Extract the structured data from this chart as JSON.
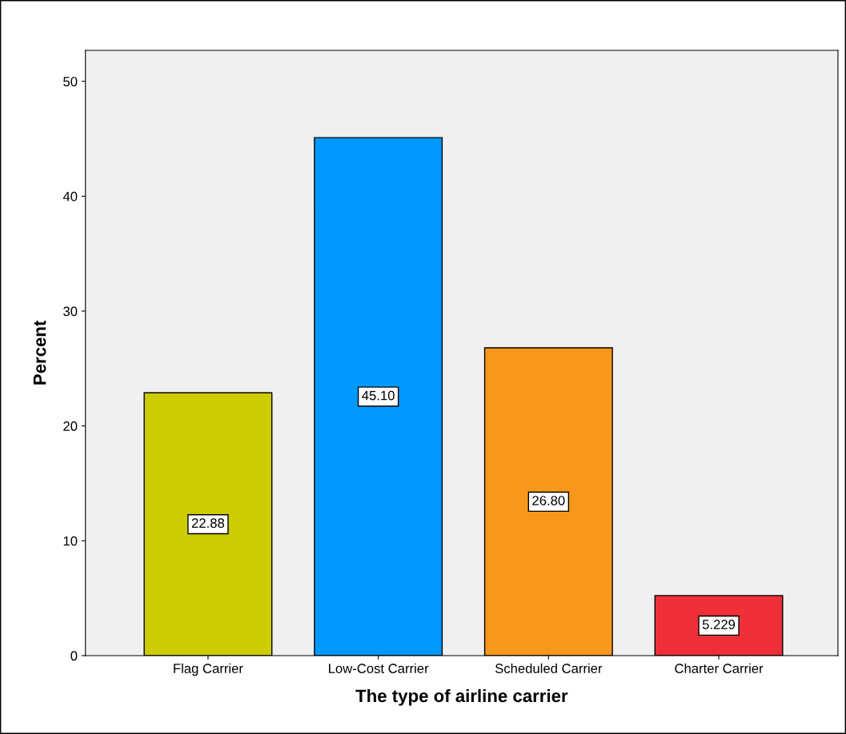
{
  "chart_data": {
    "type": "bar",
    "xlabel": "The type of airline carrier",
    "ylabel": "Percent",
    "categories": [
      "Flag Carrier",
      "Low-Cost Carrier",
      "Scheduled Carrier",
      "Charter Carrier"
    ],
    "values": [
      22.88,
      45.1,
      26.8,
      5.229
    ],
    "value_labels": [
      "22.88",
      "45.10",
      "26.80",
      "5.229"
    ],
    "colors": [
      "#cccc00",
      "#0099ff",
      "#f7981d",
      "#ef3038"
    ],
    "ylim": [
      0,
      52.7
    ],
    "yticks": [
      0,
      10,
      20,
      30,
      40,
      50
    ],
    "grid": false,
    "legend": false
  }
}
